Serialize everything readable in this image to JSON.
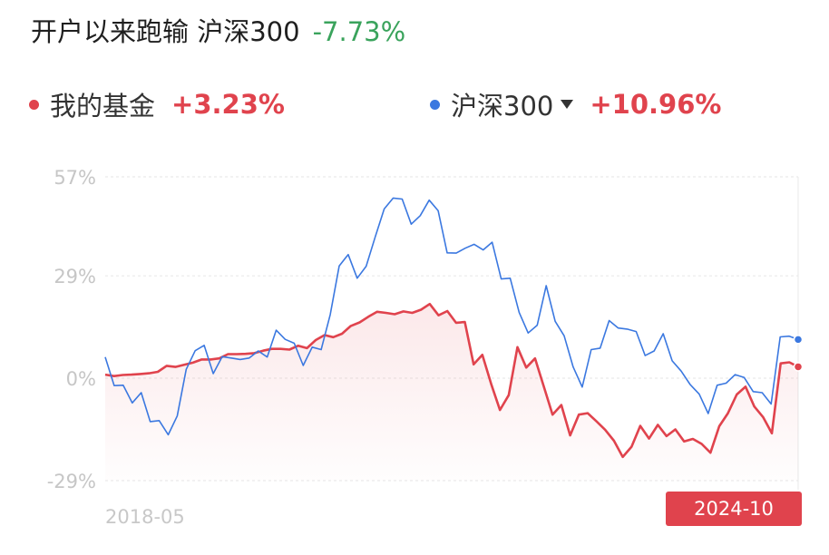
{
  "header": {
    "title": "开户以来跑输 沪深300",
    "excess_return": "-7.73%",
    "colors": {
      "title": "#1f1f1f",
      "negative": "#3aa35c"
    }
  },
  "legend": {
    "items": [
      {
        "name": "我的基金",
        "value": "+3.23%",
        "dot_color": "#e0434d",
        "value_color": "#e0434d",
        "dropdown": false
      },
      {
        "name": "沪深300",
        "value": "+10.96%",
        "dot_color": "#3b78e0",
        "value_color": "#e0434d",
        "dropdown": true
      }
    ]
  },
  "chart_data": {
    "type": "line",
    "x_start_label": "2018-05",
    "x_end_label": "2024-10",
    "y_tick_labels": [
      "57%",
      "29%",
      "0%",
      "-29%"
    ],
    "y_ticks": [
      57,
      29,
      0,
      -29
    ],
    "ylim": [
      -29,
      57
    ],
    "grid": true,
    "series": [
      {
        "name": "我的基金",
        "color": "#e0434d",
        "fill": true,
        "end_value": 3.23,
        "values": [
          1,
          0.6,
          0.9,
          1,
          1.2,
          1.4,
          1.8,
          3.5,
          3.2,
          3.8,
          4.4,
          5.3,
          5.3,
          5.6,
          6.8,
          6.8,
          6.9,
          7.1,
          7.8,
          8.3,
          8.3,
          8.1,
          9.2,
          8.5,
          10.8,
          12.2,
          11.6,
          12.6,
          14.8,
          15.8,
          17.4,
          18.8,
          18.5,
          18.1,
          18.9,
          18.5,
          19.4,
          21,
          17.8,
          19,
          15.7,
          15.9,
          3.9,
          6.6,
          -1.6,
          -9,
          -4.8,
          8.8,
          3,
          5.6,
          -2.3,
          -10.3,
          -7.6,
          -16.2,
          -10.3,
          -9.9,
          -12.2,
          -14.6,
          -17.7,
          -22.3,
          -19.4,
          -13.5,
          -17.1,
          -13.2,
          -16.4,
          -14.5,
          -17.9,
          -17.2,
          -18.6,
          -21.1,
          -13.6,
          -9.9,
          -4.6,
          -2.4,
          -8,
          -11,
          -15.6,
          4.2,
          4.5,
          3.23
        ]
      },
      {
        "name": "沪深300",
        "color": "#3b78e0",
        "fill": false,
        "end_value": 10.96,
        "values": [
          6,
          -2.1,
          -2,
          -7,
          -4.1,
          -12.3,
          -12,
          -16,
          -10.7,
          2.5,
          7.8,
          9.3,
          1.3,
          6.1,
          5.7,
          5.3,
          5.7,
          7.7,
          6,
          13.6,
          11,
          9.9,
          3.6,
          8.8,
          8.1,
          18,
          31.8,
          35,
          28.3,
          31.7,
          40,
          47.9,
          51,
          50.7,
          43.6,
          46,
          50.4,
          47.4,
          35.5,
          35.4,
          36.8,
          37.9,
          36.3,
          38.5,
          28.1,
          28.3,
          18.6,
          12.8,
          15,
          26.2,
          16.1,
          12,
          3.2,
          -2.5,
          8.1,
          8.5,
          16.3,
          14.2,
          13.9,
          13.2,
          6.4,
          7.7,
          12.6,
          4.9,
          2,
          -1.8,
          -4.5,
          -10,
          -2,
          -1.4,
          1,
          0.2,
          -3.8,
          -4.1,
          -7.3,
          11.7,
          11.9,
          10.96
        ]
      }
    ]
  }
}
